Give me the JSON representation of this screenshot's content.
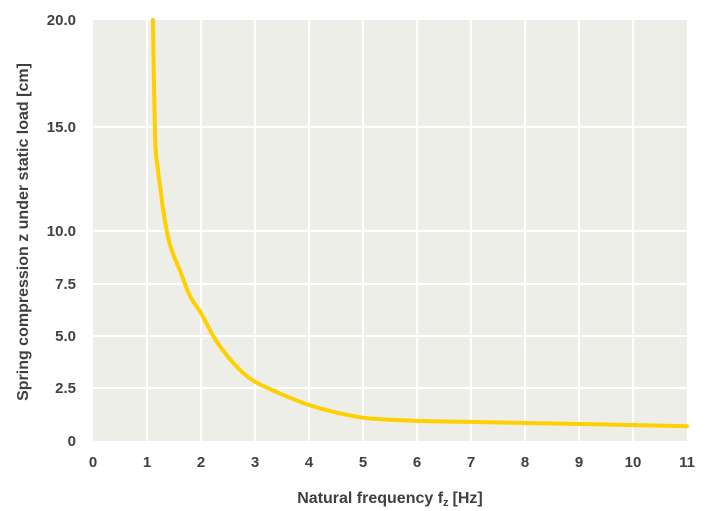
{
  "chart_data": {
    "type": "line",
    "xlabel": "Natural frequency f",
    "xlabel_sub": "z",
    "xlabel_unit": "[Hz]",
    "ylabel": "Spring compression z under static load [cm]",
    "xlim": [
      0,
      11
    ],
    "ylim": [
      0,
      20
    ],
    "x_ticks": [
      0,
      1,
      2,
      3,
      4,
      5,
      6,
      7,
      8,
      9,
      10,
      11
    ],
    "y_ticks": [
      0,
      2.5,
      5.0,
      7.5,
      10.0,
      15.0,
      20.0
    ],
    "y_tick_labels": [
      "0",
      "2.5",
      "5.0",
      "7.5",
      "10.0",
      "15.0",
      "20.0"
    ],
    "grid": true,
    "colors": {
      "series": "#ffd000",
      "plot_bg": "#eeeee9",
      "grid": "#ffffff",
      "text": "#3f4141"
    },
    "series": [
      {
        "x": [
          1.11,
          1.15,
          1.2,
          1.25,
          1.3,
          1.4,
          1.5,
          1.6,
          1.8,
          2.0,
          2.25,
          2.5,
          2.75,
          3.0,
          3.5,
          4.0,
          4.5,
          5.0,
          5.5,
          6.0,
          6.5,
          7.0,
          8.0,
          9.0,
          10.0,
          11.0
        ],
        "y": [
          20.0,
          14.5,
          13.0,
          12.0,
          11.0,
          9.6,
          8.8,
          8.2,
          6.9,
          6.1,
          4.9,
          4.0,
          3.3,
          2.8,
          2.2,
          1.7,
          1.35,
          1.1,
          1.0,
          0.95,
          0.92,
          0.9,
          0.85,
          0.8,
          0.75,
          0.7
        ]
      }
    ]
  }
}
